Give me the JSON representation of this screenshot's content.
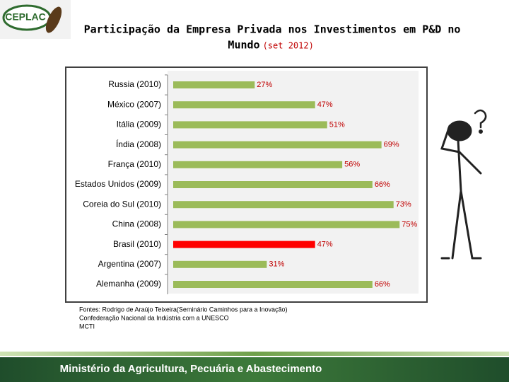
{
  "logo": "CEPLAC",
  "chart_data": {
    "type": "bar",
    "orientation": "horizontal",
    "title": "Participação da Empresa Privada nos Investimentos em P&D no",
    "title_line2": "Mundo",
    "title_note": "(set 2012)",
    "categories": [
      "Russia (2010)",
      "México (2007)",
      "Itália (2009)",
      "Índia (2008)",
      "França (2010)",
      "Estados Unidos (2009)",
      "Coreia do Sul (2010)",
      "China (2008)",
      "Brasil (2010)",
      "Argentina (2007)",
      "Alemanha (2009)"
    ],
    "values": [
      27,
      47,
      51,
      69,
      56,
      66,
      73,
      75,
      47,
      31,
      66
    ],
    "value_labels": [
      "27%",
      "47%",
      "51%",
      "69%",
      "56%",
      "66%",
      "73%",
      "75%",
      "47%",
      "31%",
      "66%"
    ],
    "colors": [
      "#9bbb59",
      "#9bbb59",
      "#9bbb59",
      "#9bbb59",
      "#9bbb59",
      "#9bbb59",
      "#9bbb59",
      "#9bbb59",
      "#ff0000",
      "#9bbb59",
      "#9bbb59"
    ],
    "source": [
      "Fontes: Rodrigo de Araújo Teixeira(Seminário Caminhos para a Inovação)",
      "Confederação Nacional da Indústria com a UNESCO",
      "MCTI"
    ]
  },
  "footer": "Ministério da Agricultura, Pecuária e Abastecimento"
}
